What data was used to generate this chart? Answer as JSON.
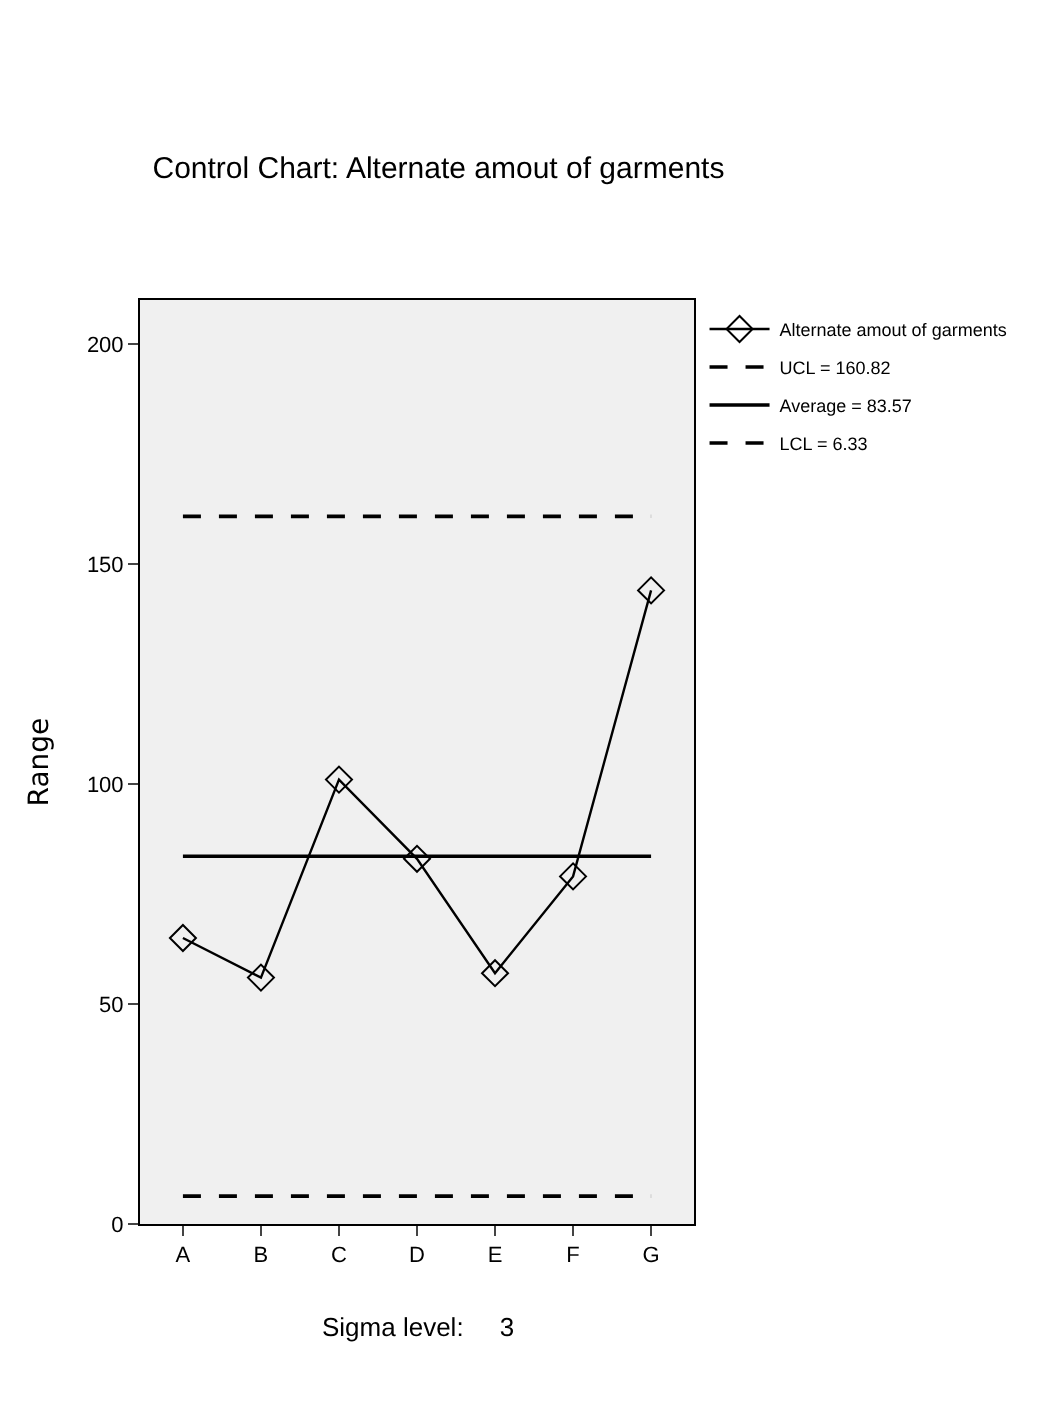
{
  "chart_data": {
    "type": "line",
    "title": "Control Chart: Alternate amout of garments",
    "ylabel": "Range",
    "categories": [
      "A",
      "B",
      "C",
      "D",
      "E",
      "F",
      "G"
    ],
    "series": [
      {
        "name": "Alternate amout of garments",
        "color": "#000000",
        "values": [
          65,
          56,
          101,
          83,
          57,
          79,
          144
        ]
      }
    ],
    "marker": "diamond",
    "ref_lines": [
      {
        "axis": "y",
        "value": 160.82,
        "label": "UCL = 160.82",
        "line_style": "dashed",
        "color": "#000000"
      },
      {
        "axis": "y",
        "value": 83.57,
        "label": "Average = 83.57",
        "line_style": "solid",
        "color": "#000000"
      },
      {
        "axis": "y",
        "value": 6.33,
        "label": "LCL = 6.33",
        "line_style": "dashed",
        "color": "#000000"
      }
    ],
    "ylim": [
      0,
      210
    ],
    "yticks": [
      0,
      50,
      100,
      150,
      200
    ],
    "annotations": [
      "Sigma level:     3"
    ],
    "legend": "top right",
    "grid": false
  }
}
